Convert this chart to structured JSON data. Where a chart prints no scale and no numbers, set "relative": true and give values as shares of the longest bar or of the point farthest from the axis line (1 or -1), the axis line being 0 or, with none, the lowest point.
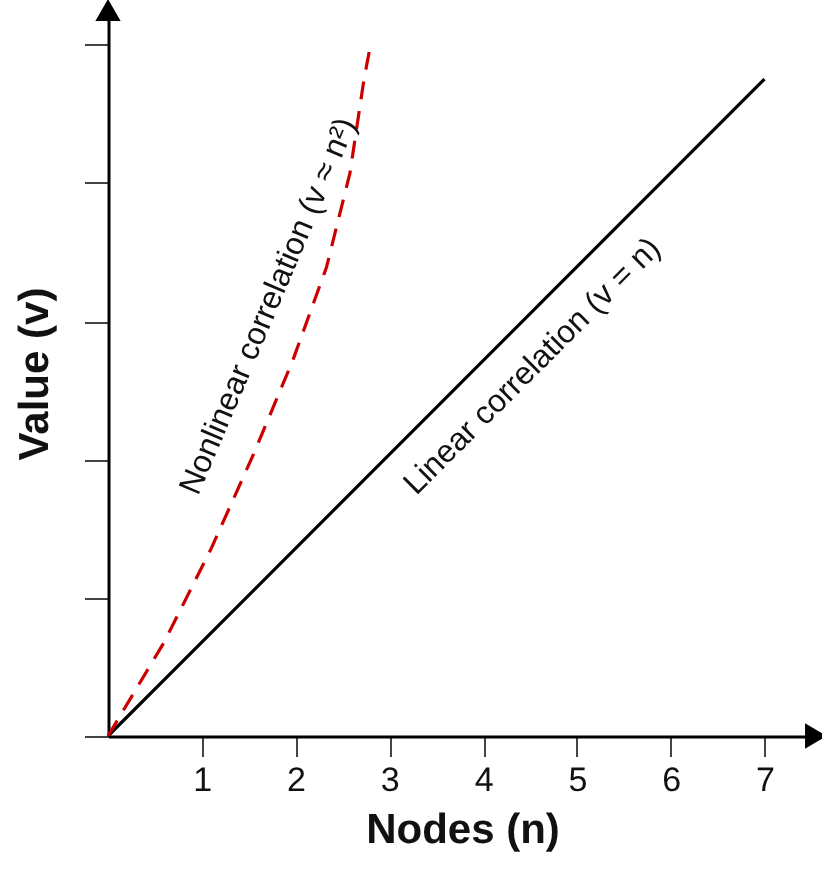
{
  "chart_data": {
    "type": "line",
    "relative": true,
    "xlabel": "Nodes (n)",
    "ylabel": "Value (v)",
    "xlim": [
      0,
      7.55
    ],
    "xticks": [
      1,
      2,
      3,
      4,
      5,
      6,
      7
    ],
    "tick_labels": "x",
    "marker": "none",
    "series": [
      {
        "color": "#000000",
        "line_style": "solid",
        "x": [
          0,
          7
        ],
        "values": [
          0,
          0.95
        ]
      },
      {
        "color": "#cc0000",
        "line_style": "dashed",
        "x": [
          0,
          0.6,
          1.1,
          1.55,
          1.97,
          2.33,
          2.58,
          2.73,
          2.8
        ],
        "values": [
          0,
          0.136,
          0.271,
          0.407,
          0.543,
          0.678,
          0.814,
          0.95,
          1
        ]
      }
    ],
    "annotations": [
      "Nonlinear correlation (v ≈ n²)",
      "Linear correlation (v = n)"
    ]
  }
}
